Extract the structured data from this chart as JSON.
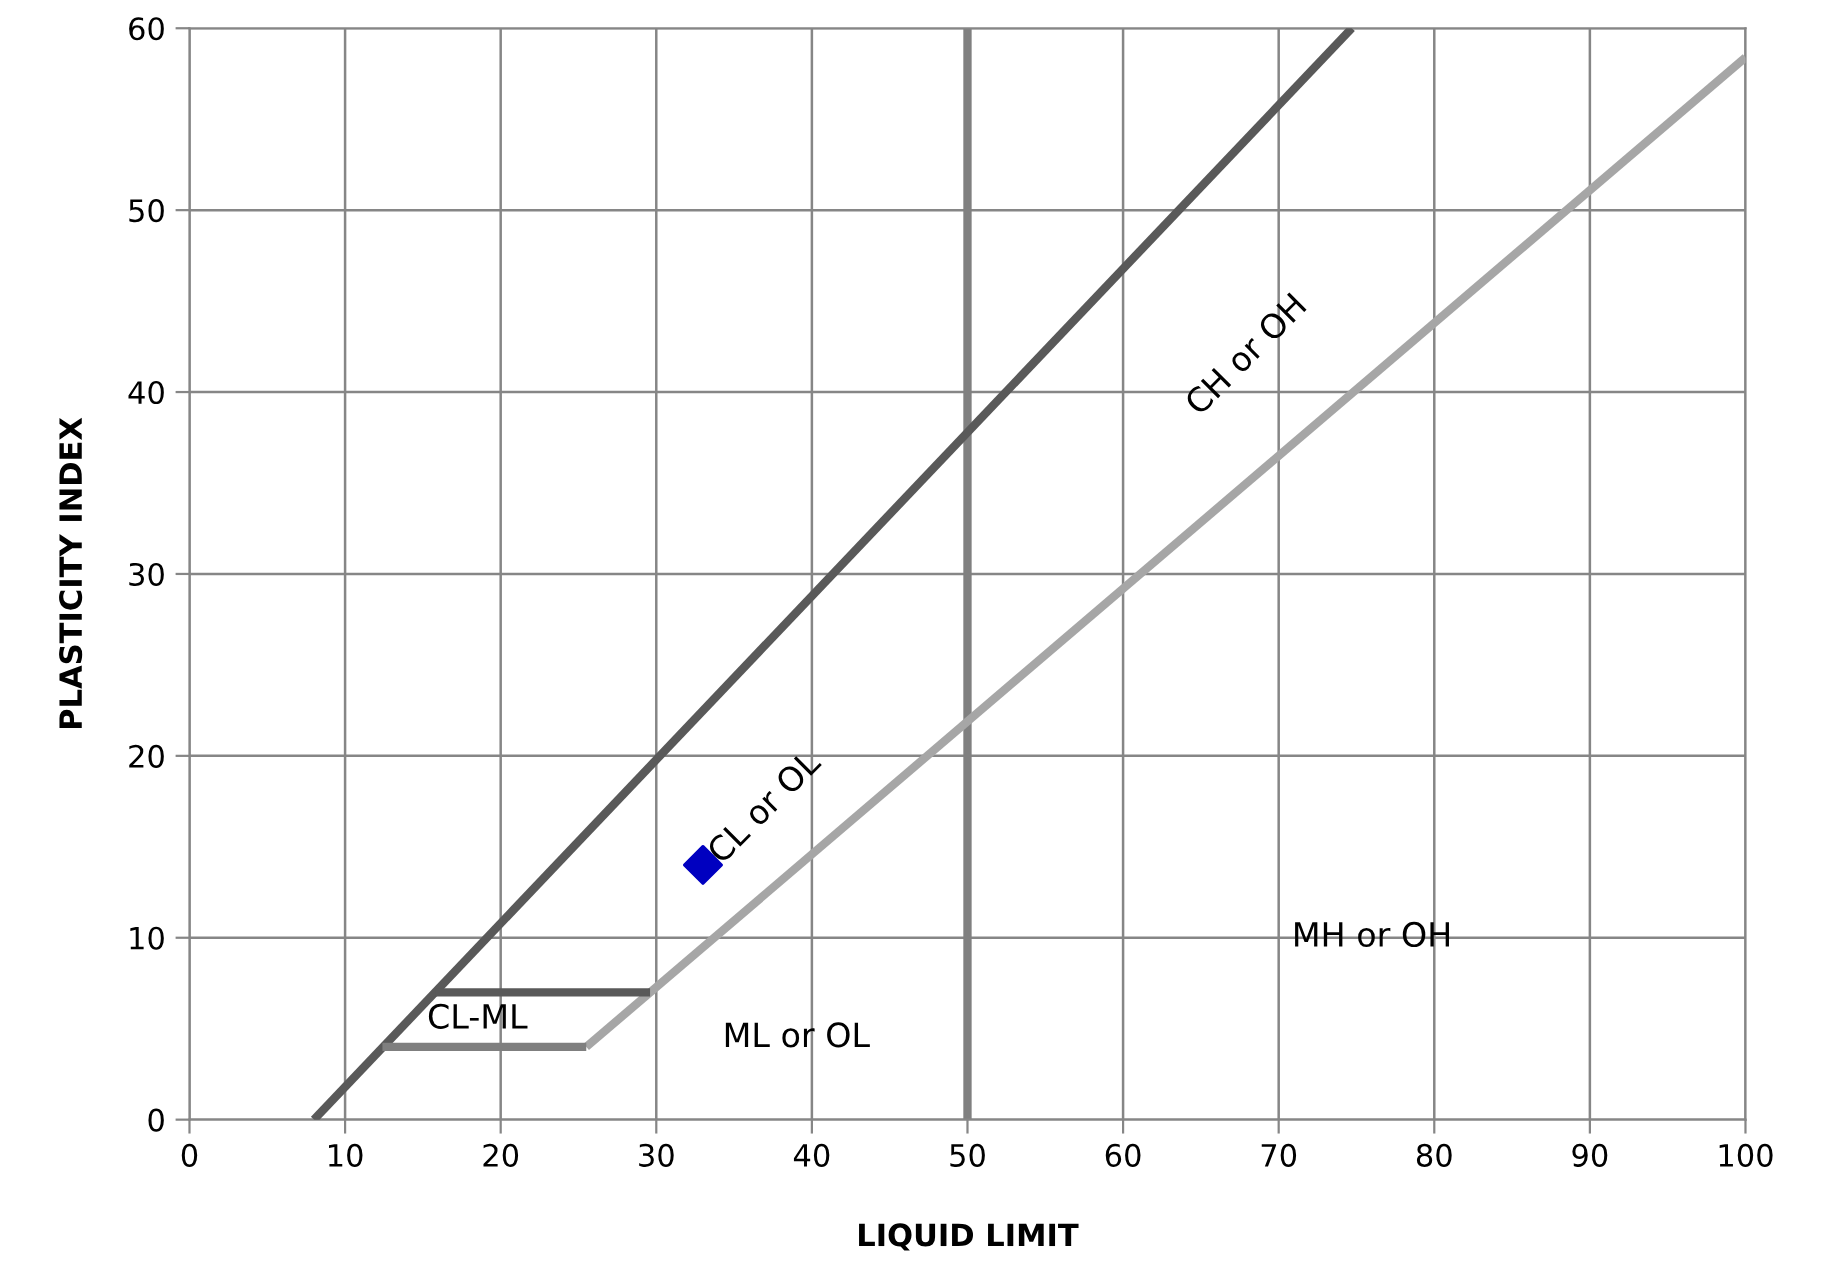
{
  "chart_data": {
    "type": "line",
    "xlabel": "LIQUID LIMIT",
    "ylabel": "PLASTICITY INDEX",
    "xlim": [
      0,
      100
    ],
    "ylim": [
      0,
      60
    ],
    "xticks": [
      0,
      10,
      20,
      30,
      40,
      50,
      60,
      70,
      80,
      90,
      100
    ],
    "yticks": [
      0,
      10,
      20,
      30,
      40,
      50,
      60
    ],
    "grid": true,
    "series": [
      {
        "color": "#595959",
        "x": [
          8,
          74.7
        ],
        "values": [
          0,
          60
        ]
      },
      {
        "color": "#a6a6a6",
        "x": [
          25.5,
          100
        ],
        "values": [
          4,
          58.4
        ]
      },
      {
        "color": "#595959",
        "x": [
          15.8,
          29.6
        ],
        "values": [
          7,
          7
        ]
      },
      {
        "color": "#7f7f7f",
        "x": [
          12.4,
          25.5
        ],
        "values": [
          4,
          4
        ]
      },
      {
        "type": "scatter",
        "color": "#0000c0",
        "marker": "diamond",
        "x": [
          33
        ],
        "values": [
          14
        ]
      }
    ],
    "ref_lines": [
      {
        "axis": "x",
        "value": 50,
        "color": "#808080"
      }
    ],
    "annotations": [
      "CH or OH",
      "CL or OL",
      "MH or OH",
      "ML or OL",
      "CL-ML"
    ]
  }
}
